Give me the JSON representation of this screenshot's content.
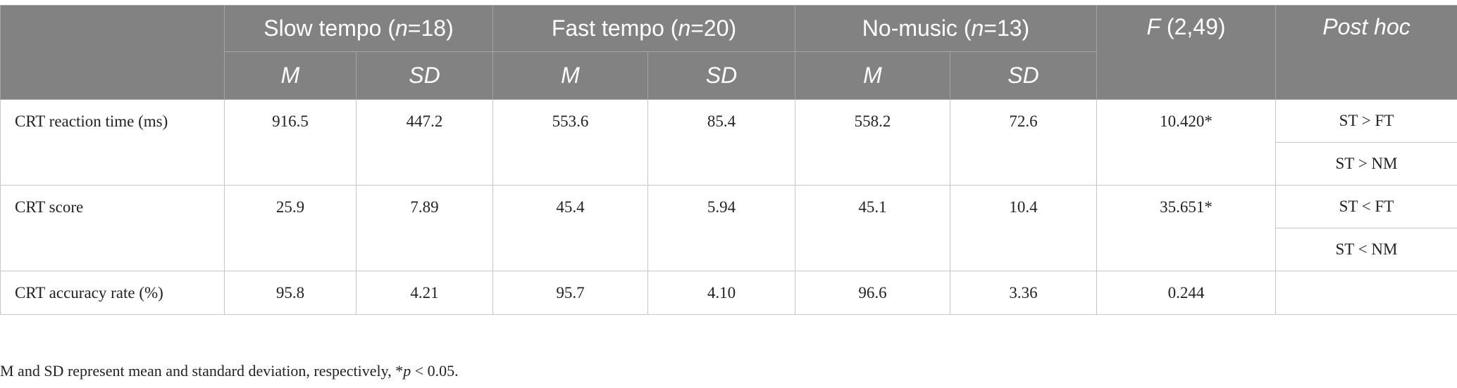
{
  "header": {
    "groups": [
      [
        "Slow tempo (",
        "n",
        "=18)"
      ],
      [
        "Fast tempo (",
        "n",
        "=20)"
      ],
      [
        "No-music (",
        "n",
        "=13)"
      ]
    ],
    "f_column": [
      "F",
      " (2,49)"
    ],
    "posthoc_column": "Post hoc",
    "subcolumns": [
      "M",
      "SD",
      "M",
      "SD",
      "M",
      "SD"
    ]
  },
  "table": {
    "rows": [
      {
        "label": "CRT reaction time (ms)",
        "values": [
          "916.5",
          "447.2",
          "553.6",
          "85.4",
          "558.2",
          "72.6"
        ],
        "f": "10.420*",
        "posthoc": [
          "ST > FT",
          "ST > NM"
        ]
      },
      {
        "label": "CRT score",
        "values": [
          "25.9",
          "7.89",
          "45.4",
          "5.94",
          "45.1",
          "10.4"
        ],
        "f": "35.651*",
        "posthoc": [
          "ST < FT",
          "ST < NM"
        ]
      },
      {
        "label": "CRT accuracy rate (%)",
        "values": [
          "95.8",
          "4.21",
          "95.7",
          "4.10",
          "96.6",
          "3.36"
        ],
        "f": "0.244",
        "posthoc": []
      }
    ]
  },
  "footnote": [
    "M and SD represent mean and standard deviation, respectively, *",
    "p",
    " < 0.05."
  ]
}
